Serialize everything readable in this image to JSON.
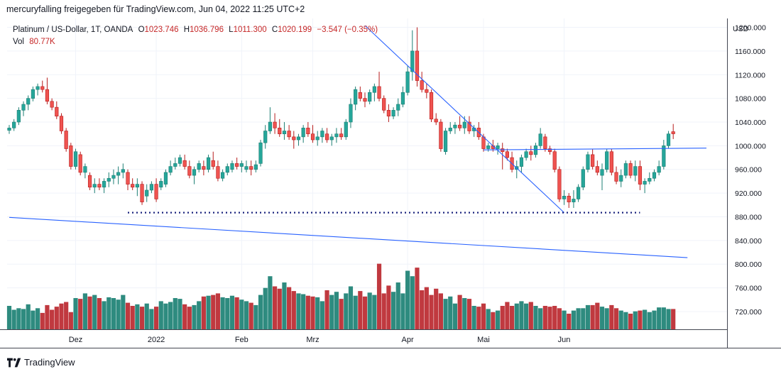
{
  "header": {
    "title": "mercuryfalling freigegeben für TradingView.com, Jun 04, 2022 11:25 UTC+2"
  },
  "legend": {
    "symbol": "Platinum / US-Dollar, 1T, OANDA",
    "open_label": "O",
    "open": "1023.746",
    "high_label": "H",
    "high": "1036.796",
    "low_label": "L",
    "low": "1011.300",
    "close_label": "C",
    "close": "1020.199",
    "change": "−3.547 (−0.35%)",
    "vol_label": "Vol",
    "vol": "80.77K"
  },
  "footer": {
    "brand": "TradingView",
    "logo_icon": "tradingview-logo-icon"
  },
  "colors": {
    "up": "#26a69a",
    "down": "#ef5350",
    "up_vol": "#2e8b7f",
    "down_vol": "#c0393f",
    "trendline": "#2962ff",
    "support": "#1a237e",
    "grid": "#f0f3fa"
  },
  "chart_data": {
    "type": "candlestick",
    "currency_label": "USD",
    "y_axis": {
      "ticks": [
        "1200.000",
        "1160.000",
        "1120.000",
        "1080.000",
        "1040.000",
        "1000.000",
        "960.000",
        "920.000",
        "880.000",
        "840.000",
        "800.000",
        "760.000",
        "720.000"
      ],
      "range": [
        690,
        1215
      ]
    },
    "x_axis": {
      "ticks": [
        {
          "label": "Dez",
          "index": 14
        },
        {
          "label": "2022",
          "index": 31
        },
        {
          "label": "Feb",
          "index": 49
        },
        {
          "label": "Mrz",
          "index": 64
        },
        {
          "label": "Apr",
          "index": 84
        },
        {
          "label": "Mai",
          "index": 100
        },
        {
          "label": "Jun",
          "index": 117
        }
      ]
    },
    "candles": [
      [
        1026,
        1035,
        1020,
        1030,
        3.0
      ],
      [
        1030,
        1045,
        1025,
        1040,
        2.5
      ],
      [
        1040,
        1065,
        1035,
        1060,
        2.7
      ],
      [
        1060,
        1075,
        1050,
        1070,
        2.6
      ],
      [
        1070,
        1085,
        1060,
        1080,
        3.2
      ],
      [
        1080,
        1100,
        1075,
        1095,
        2.4
      ],
      [
        1095,
        1105,
        1085,
        1100,
        2.7
      ],
      [
        1100,
        1110,
        1090,
        1095,
        2.1
      ],
      [
        1095,
        1115,
        1070,
        1075,
        3.1
      ],
      [
        1075,
        1080,
        1060,
        1065,
        2.5
      ],
      [
        1065,
        1075,
        1045,
        1050,
        2.9
      ],
      [
        1050,
        1055,
        1020,
        1025,
        3.3
      ],
      [
        1025,
        1030,
        990,
        995,
        3.5
      ],
      [
        1000,
        1005,
        960,
        965,
        2.2
      ],
      [
        965,
        995,
        960,
        990,
        4.0
      ],
      [
        985,
        990,
        950,
        955,
        3.9
      ],
      [
        955,
        970,
        945,
        965,
        4.6
      ],
      [
        950,
        955,
        925,
        930,
        4.2
      ],
      [
        930,
        945,
        920,
        935,
        4.4
      ],
      [
        935,
        945,
        925,
        930,
        4.0
      ],
      [
        930,
        945,
        920,
        940,
        3.6
      ],
      [
        940,
        955,
        930,
        945,
        4.1
      ],
      [
        945,
        960,
        935,
        950,
        4.0
      ],
      [
        950,
        965,
        935,
        955,
        3.8
      ],
      [
        955,
        970,
        945,
        960,
        4.4
      ],
      [
        955,
        960,
        925,
        935,
        3.4
      ],
      [
        935,
        945,
        925,
        930,
        3.0
      ],
      [
        930,
        945,
        915,
        935,
        3.2
      ],
      [
        935,
        940,
        900,
        905,
        2.9
      ],
      [
        915,
        935,
        905,
        925,
        3.3
      ],
      [
        925,
        940,
        920,
        935,
        2.6
      ],
      [
        935,
        945,
        905,
        910,
        2.9
      ],
      [
        930,
        945,
        925,
        940,
        3.6
      ],
      [
        935,
        960,
        930,
        955,
        3.3
      ],
      [
        955,
        975,
        950,
        965,
        3.5
      ],
      [
        965,
        980,
        960,
        970,
        4.0
      ],
      [
        970,
        985,
        965,
        980,
        3.9
      ],
      [
        975,
        985,
        960,
        965,
        3.2
      ],
      [
        965,
        975,
        945,
        950,
        2.9
      ],
      [
        950,
        965,
        935,
        960,
        3.1
      ],
      [
        960,
        975,
        955,
        970,
        3.6
      ],
      [
        965,
        975,
        950,
        960,
        4.2
      ],
      [
        960,
        985,
        955,
        980,
        4.3
      ],
      [
        975,
        990,
        960,
        965,
        4.4
      ],
      [
        965,
        975,
        940,
        945,
        4.6
      ],
      [
        945,
        960,
        940,
        955,
        4.1
      ],
      [
        955,
        970,
        950,
        965,
        4.0
      ],
      [
        960,
        975,
        955,
        970,
        4.3
      ],
      [
        970,
        980,
        960,
        965,
        4.1
      ],
      [
        965,
        975,
        955,
        970,
        3.8
      ],
      [
        960,
        975,
        955,
        965,
        3.6
      ],
      [
        965,
        975,
        950,
        960,
        3.4
      ],
      [
        960,
        975,
        955,
        968,
        3.1
      ],
      [
        970,
        1010,
        965,
        1005,
        4.4
      ],
      [
        1005,
        1035,
        995,
        1025,
        5.3
      ],
      [
        1025,
        1065,
        1020,
        1040,
        6.8
      ],
      [
        1040,
        1055,
        1020,
        1030,
        5.5
      ],
      [
        1030,
        1045,
        1015,
        1020,
        5.2
      ],
      [
        1020,
        1040,
        1010,
        1025,
        6.0
      ],
      [
        1025,
        1035,
        1010,
        1015,
        5.4
      ],
      [
        1015,
        1025,
        995,
        1010,
        4.9
      ],
      [
        1010,
        1020,
        1000,
        1015,
        4.6
      ],
      [
        1015,
        1035,
        1005,
        1030,
        4.5
      ],
      [
        1030,
        1040,
        1015,
        1020,
        4.3
      ],
      [
        1020,
        1035,
        1005,
        1010,
        4.2
      ],
      [
        1010,
        1025,
        1000,
        1015,
        4.1
      ],
      [
        1015,
        1030,
        1005,
        1025,
        3.6
      ],
      [
        1020,
        1030,
        1005,
        1010,
        5.0
      ],
      [
        1010,
        1020,
        1000,
        1015,
        4.4
      ],
      [
        1015,
        1030,
        1005,
        1020,
        4.8
      ],
      [
        1020,
        1030,
        1010,
        1015,
        3.9
      ],
      [
        1015,
        1045,
        1010,
        1040,
        4.6
      ],
      [
        1040,
        1080,
        1030,
        1070,
        5.5
      ],
      [
        1070,
        1100,
        1060,
        1095,
        4.3
      ],
      [
        1090,
        1100,
        1075,
        1080,
        4.9
      ],
      [
        1080,
        1090,
        1065,
        1075,
        4.2
      ],
      [
        1075,
        1095,
        1070,
        1090,
        4.7
      ],
      [
        1090,
        1105,
        1075,
        1100,
        4.4
      ],
      [
        1100,
        1125,
        1075,
        1080,
        8.4
      ],
      [
        1080,
        1085,
        1055,
        1060,
        4.6
      ],
      [
        1060,
        1070,
        1040,
        1050,
        5.6
      ],
      [
        1050,
        1065,
        1045,
        1060,
        4.8
      ],
      [
        1060,
        1080,
        1050,
        1070,
        6.0
      ],
      [
        1070,
        1100,
        1065,
        1090,
        4.6
      ],
      [
        1090,
        1135,
        1085,
        1125,
        7.5
      ],
      [
        1125,
        1195,
        1110,
        1160,
        6.8
      ],
      [
        1160,
        1200,
        1100,
        1110,
        7.9
      ],
      [
        1110,
        1125,
        1090,
        1095,
        5.0
      ],
      [
        1095,
        1105,
        1080,
        1090,
        5.4
      ],
      [
        1090,
        1095,
        1040,
        1045,
        4.4
      ],
      [
        1045,
        1055,
        1035,
        1040,
        5.2
      ],
      [
        1040,
        1045,
        990,
        995,
        4.6
      ],
      [
        990,
        1030,
        985,
        1025,
        3.9
      ],
      [
        1025,
        1040,
        1020,
        1030,
        4.2
      ],
      [
        1030,
        1040,
        1020,
        1035,
        3.3
      ],
      [
        1035,
        1050,
        1025,
        1030,
        4.4
      ],
      [
        1030,
        1050,
        1020,
        1040,
        4.0
      ],
      [
        1040,
        1050,
        1020,
        1025,
        3.9
      ],
      [
        1025,
        1035,
        1015,
        1030,
        3.0
      ],
      [
        1030,
        1040,
        1010,
        1015,
        2.9
      ],
      [
        1015,
        1020,
        990,
        995,
        3.3
      ],
      [
        995,
        1005,
        990,
        1000,
        2.6
      ],
      [
        1000,
        1010,
        990,
        995,
        2.2
      ],
      [
        995,
        1005,
        985,
        1000,
        2.4
      ],
      [
        995,
        1005,
        960,
        990,
        3.0
      ],
      [
        990,
        995,
        975,
        980,
        3.5
      ],
      [
        980,
        990,
        955,
        960,
        3.0
      ],
      [
        960,
        975,
        945,
        965,
        3.3
      ],
      [
        965,
        985,
        955,
        980,
        3.6
      ],
      [
        980,
        995,
        975,
        990,
        3.3
      ],
      [
        990,
        1000,
        975,
        985,
        3.5
      ],
      [
        985,
        1005,
        980,
        1000,
        3.0
      ],
      [
        1000,
        1030,
        995,
        1020,
        2.7
      ],
      [
        1015,
        1020,
        990,
        995,
        3.0
      ],
      [
        995,
        1000,
        985,
        990,
        2.9
      ],
      [
        990,
        995,
        955,
        960,
        3.0
      ],
      [
        960,
        965,
        905,
        910,
        2.7
      ],
      [
        910,
        925,
        900,
        915,
        2.4
      ],
      [
        915,
        920,
        895,
        905,
        2.0
      ],
      [
        905,
        925,
        895,
        910,
        2.4
      ],
      [
        910,
        935,
        905,
        930,
        2.7
      ],
      [
        930,
        965,
        925,
        960,
        2.7
      ],
      [
        960,
        990,
        955,
        985,
        3.1
      ],
      [
        985,
        995,
        960,
        965,
        3.1
      ],
      [
        965,
        975,
        950,
        955,
        3.4
      ],
      [
        950,
        970,
        925,
        960,
        2.9
      ],
      [
        960,
        995,
        955,
        990,
        2.7
      ],
      [
        990,
        995,
        950,
        955,
        3.1
      ],
      [
        955,
        965,
        935,
        940,
        2.7
      ],
      [
        940,
        960,
        930,
        950,
        2.4
      ],
      [
        950,
        975,
        945,
        970,
        2.2
      ],
      [
        970,
        975,
        945,
        950,
        2.0
      ],
      [
        950,
        975,
        940,
        965,
        2.3
      ],
      [
        965,
        975,
        925,
        935,
        2.4
      ],
      [
        935,
        945,
        920,
        940,
        2.5
      ],
      [
        940,
        955,
        935,
        945,
        2.2
      ],
      [
        945,
        960,
        940,
        955,
        2.4
      ],
      [
        955,
        975,
        950,
        965,
        2.8
      ],
      [
        965,
        1010,
        960,
        1000,
        2.8
      ],
      [
        1000,
        1025,
        995,
        1020,
        2.6
      ],
      [
        1023.746,
        1036.796,
        1011.3,
        1020.199,
        2.6
      ]
    ],
    "annotations": [
      {
        "type": "trendline",
        "points": [
          [
            0,
            879
          ],
          [
            143,
            811
          ]
        ]
      },
      {
        "type": "trendline",
        "points": [
          [
            75,
            1203
          ],
          [
            117,
            887
          ]
        ]
      },
      {
        "type": "trendline",
        "points": [
          [
            100,
            993
          ],
          [
            147,
            996
          ]
        ]
      },
      {
        "type": "horizontal_dotted",
        "price": 887,
        "from": 25,
        "to": 133
      }
    ]
  }
}
